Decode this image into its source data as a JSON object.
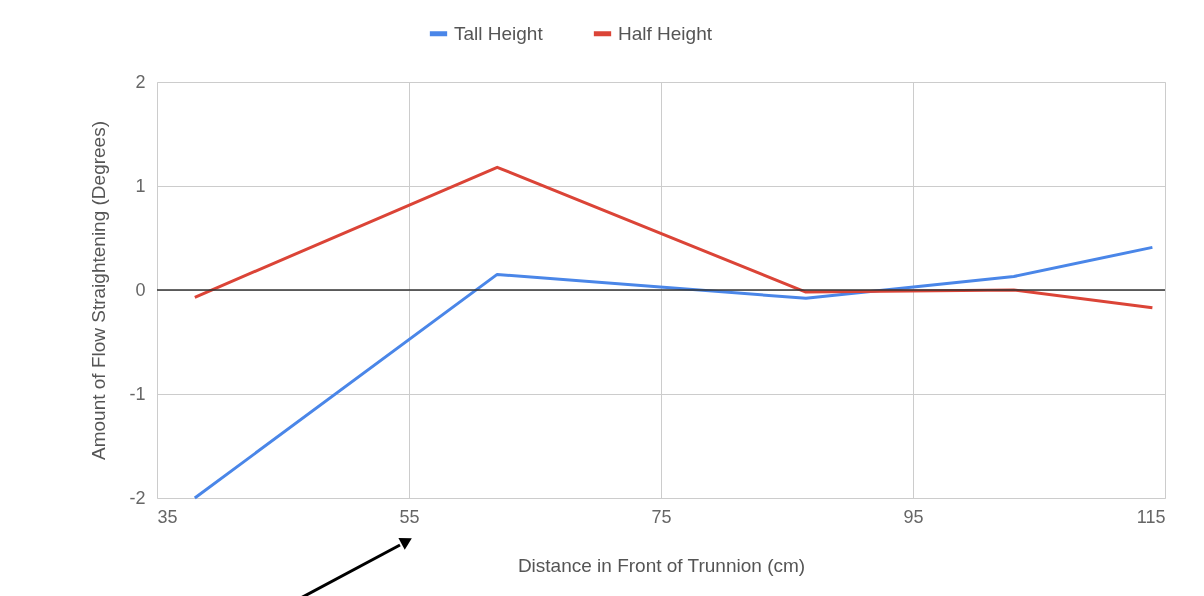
{
  "chart_data": {
    "type": "line",
    "xlabel": "Distance in Front of Trunnion (cm)",
    "ylabel": "Amount of Flow Straightening (Degrees)",
    "x": [
      38,
      62,
      86.5,
      103,
      114
    ],
    "series": [
      {
        "name": "Tall Height",
        "color": "#4a86e8",
        "values": [
          -2.0,
          0.15,
          -0.08,
          0.13,
          0.41
        ]
      },
      {
        "name": "Half Height",
        "color": "#db4437",
        "values": [
          -0.07,
          1.18,
          -0.02,
          0.0,
          -0.17
        ]
      }
    ],
    "xlim": [
      35,
      115
    ],
    "xticks": [
      35,
      55,
      75,
      95,
      115
    ],
    "ylim": [
      -2,
      2
    ],
    "yticks": [
      -2,
      -1,
      0,
      1,
      2
    ],
    "ref_lines": [
      {
        "axis": "y",
        "value": 0,
        "color": "#333333"
      }
    ],
    "grid": true,
    "legend": "top",
    "marker": "none",
    "line_style": "solid"
  }
}
